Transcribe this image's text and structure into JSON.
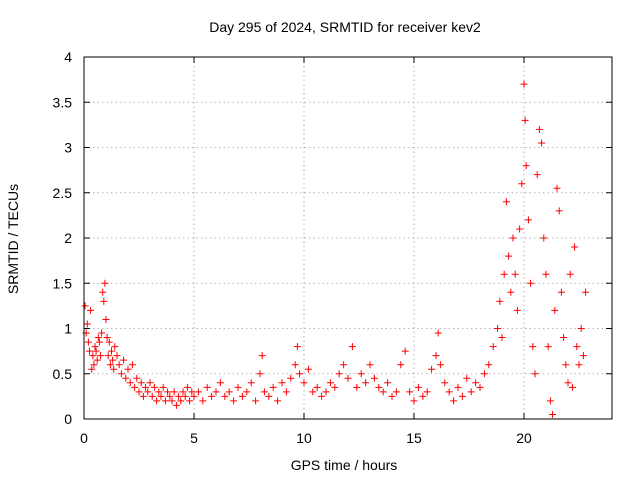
{
  "chart_data": {
    "type": "scatter",
    "title": "Day 295 of 2024, SRMTID for receiver kev2",
    "xlabel": "GPS time / hours",
    "ylabel": "SRMTID / TECUs",
    "xlim": [
      0,
      24
    ],
    "ylim": [
      0,
      4
    ],
    "xticks": [
      0,
      5,
      10,
      15,
      20
    ],
    "yticks": [
      0,
      0.5,
      1,
      1.5,
      2,
      2.5,
      3,
      3.5,
      4
    ],
    "xtick_labels": [
      "0",
      "5",
      "10",
      "15",
      "20"
    ],
    "ytick_labels": [
      "0",
      "0.5",
      "1",
      "1.5",
      "2",
      "2.5",
      "3",
      "3.5",
      "4"
    ],
    "grid": true,
    "marker": "plus",
    "color": "#ff0000",
    "series": [
      {
        "name": "SRMTID",
        "points": [
          [
            0.05,
            1.25
          ],
          [
            0.1,
            0.95
          ],
          [
            0.15,
            1.05
          ],
          [
            0.2,
            0.85
          ],
          [
            0.25,
            0.75
          ],
          [
            0.3,
            1.2
          ],
          [
            0.35,
            0.55
          ],
          [
            0.4,
            0.7
          ],
          [
            0.45,
            0.6
          ],
          [
            0.5,
            0.8
          ],
          [
            0.55,
            0.75
          ],
          [
            0.6,
            0.65
          ],
          [
            0.65,
            0.9
          ],
          [
            0.7,
            0.85
          ],
          [
            0.75,
            0.7
          ],
          [
            0.8,
            0.95
          ],
          [
            0.85,
            1.4
          ],
          [
            0.9,
            1.3
          ],
          [
            0.95,
            1.5
          ],
          [
            1.0,
            1.1
          ],
          [
            1.05,
            0.9
          ],
          [
            1.1,
            0.7
          ],
          [
            1.15,
            0.85
          ],
          [
            1.2,
            0.6
          ],
          [
            1.25,
            0.75
          ],
          [
            1.3,
            0.65
          ],
          [
            1.35,
            0.55
          ],
          [
            1.4,
            0.8
          ],
          [
            1.5,
            0.7
          ],
          [
            1.6,
            0.6
          ],
          [
            1.7,
            0.5
          ],
          [
            1.8,
            0.65
          ],
          [
            1.9,
            0.45
          ],
          [
            2.0,
            0.55
          ],
          [
            2.1,
            0.4
          ],
          [
            2.2,
            0.6
          ],
          [
            2.3,
            0.35
          ],
          [
            2.4,
            0.45
          ],
          [
            2.5,
            0.3
          ],
          [
            2.6,
            0.4
          ],
          [
            2.7,
            0.25
          ],
          [
            2.8,
            0.35
          ],
          [
            2.9,
            0.3
          ],
          [
            3.0,
            0.4
          ],
          [
            3.1,
            0.25
          ],
          [
            3.2,
            0.35
          ],
          [
            3.3,
            0.2
          ],
          [
            3.4,
            0.3
          ],
          [
            3.5,
            0.25
          ],
          [
            3.6,
            0.35
          ],
          [
            3.7,
            0.2
          ],
          [
            3.8,
            0.3
          ],
          [
            3.9,
            0.25
          ],
          [
            4.0,
            0.2
          ],
          [
            4.1,
            0.3
          ],
          [
            4.2,
            0.15
          ],
          [
            4.3,
            0.25
          ],
          [
            4.4,
            0.2
          ],
          [
            4.5,
            0.3
          ],
          [
            4.6,
            0.25
          ],
          [
            4.7,
            0.35
          ],
          [
            4.8,
            0.2
          ],
          [
            4.9,
            0.3
          ],
          [
            5.0,
            0.25
          ],
          [
            5.2,
            0.3
          ],
          [
            5.4,
            0.2
          ],
          [
            5.6,
            0.35
          ],
          [
            5.8,
            0.25
          ],
          [
            6.0,
            0.3
          ],
          [
            6.2,
            0.4
          ],
          [
            6.4,
            0.25
          ],
          [
            6.6,
            0.3
          ],
          [
            6.8,
            0.2
          ],
          [
            7.0,
            0.35
          ],
          [
            7.2,
            0.25
          ],
          [
            7.4,
            0.3
          ],
          [
            7.6,
            0.4
          ],
          [
            7.8,
            0.2
          ],
          [
            8.0,
            0.5
          ],
          [
            8.1,
            0.7
          ],
          [
            8.2,
            0.3
          ],
          [
            8.4,
            0.25
          ],
          [
            8.6,
            0.35
          ],
          [
            8.8,
            0.2
          ],
          [
            9.0,
            0.4
          ],
          [
            9.2,
            0.3
          ],
          [
            9.4,
            0.45
          ],
          [
            9.6,
            0.6
          ],
          [
            9.7,
            0.8
          ],
          [
            9.8,
            0.5
          ],
          [
            10.0,
            0.4
          ],
          [
            10.2,
            0.55
          ],
          [
            10.4,
            0.3
          ],
          [
            10.6,
            0.35
          ],
          [
            10.8,
            0.25
          ],
          [
            11.0,
            0.3
          ],
          [
            11.2,
            0.4
          ],
          [
            11.4,
            0.35
          ],
          [
            11.6,
            0.5
          ],
          [
            11.8,
            0.6
          ],
          [
            12.0,
            0.45
          ],
          [
            12.2,
            0.8
          ],
          [
            12.4,
            0.35
          ],
          [
            12.6,
            0.5
          ],
          [
            12.8,
            0.4
          ],
          [
            13.0,
            0.6
          ],
          [
            13.2,
            0.45
          ],
          [
            13.4,
            0.35
          ],
          [
            13.6,
            0.3
          ],
          [
            13.8,
            0.4
          ],
          [
            14.0,
            0.25
          ],
          [
            14.2,
            0.3
          ],
          [
            14.4,
            0.6
          ],
          [
            14.6,
            0.75
          ],
          [
            14.8,
            0.3
          ],
          [
            15.0,
            0.2
          ],
          [
            15.2,
            0.35
          ],
          [
            15.4,
            0.25
          ],
          [
            15.6,
            0.3
          ],
          [
            15.8,
            0.55
          ],
          [
            16.0,
            0.7
          ],
          [
            16.1,
            0.95
          ],
          [
            16.2,
            0.6
          ],
          [
            16.4,
            0.4
          ],
          [
            16.6,
            0.3
          ],
          [
            16.8,
            0.2
          ],
          [
            17.0,
            0.35
          ],
          [
            17.2,
            0.25
          ],
          [
            17.4,
            0.45
          ],
          [
            17.6,
            0.3
          ],
          [
            17.8,
            0.4
          ],
          [
            18.0,
            0.35
          ],
          [
            18.2,
            0.5
          ],
          [
            18.4,
            0.6
          ],
          [
            18.6,
            0.8
          ],
          [
            18.8,
            1.0
          ],
          [
            18.9,
            1.3
          ],
          [
            19.0,
            0.9
          ],
          [
            19.1,
            1.6
          ],
          [
            19.2,
            2.4
          ],
          [
            19.3,
            1.8
          ],
          [
            19.4,
            1.4
          ],
          [
            19.5,
            2.0
          ],
          [
            19.6,
            1.6
          ],
          [
            19.7,
            1.2
          ],
          [
            19.8,
            2.1
          ],
          [
            19.9,
            2.6
          ],
          [
            20.0,
            3.7
          ],
          [
            20.05,
            3.3
          ],
          [
            20.1,
            2.8
          ],
          [
            20.2,
            2.2
          ],
          [
            20.3,
            1.5
          ],
          [
            20.4,
            0.8
          ],
          [
            20.5,
            0.5
          ],
          [
            20.6,
            2.7
          ],
          [
            20.7,
            3.2
          ],
          [
            20.8,
            3.05
          ],
          [
            20.9,
            2.0
          ],
          [
            21.0,
            1.6
          ],
          [
            21.1,
            0.8
          ],
          [
            21.2,
            0.2
          ],
          [
            21.3,
            0.05
          ],
          [
            21.4,
            1.2
          ],
          [
            21.5,
            2.55
          ],
          [
            21.6,
            2.3
          ],
          [
            21.7,
            1.4
          ],
          [
            21.8,
            0.9
          ],
          [
            21.9,
            0.6
          ],
          [
            22.0,
            0.4
          ],
          [
            22.1,
            1.6
          ],
          [
            22.2,
            0.35
          ],
          [
            22.3,
            1.9
          ],
          [
            22.4,
            0.8
          ],
          [
            22.5,
            0.6
          ],
          [
            22.6,
            1.0
          ],
          [
            22.7,
            0.7
          ],
          [
            22.8,
            1.4
          ]
        ]
      }
    ]
  }
}
